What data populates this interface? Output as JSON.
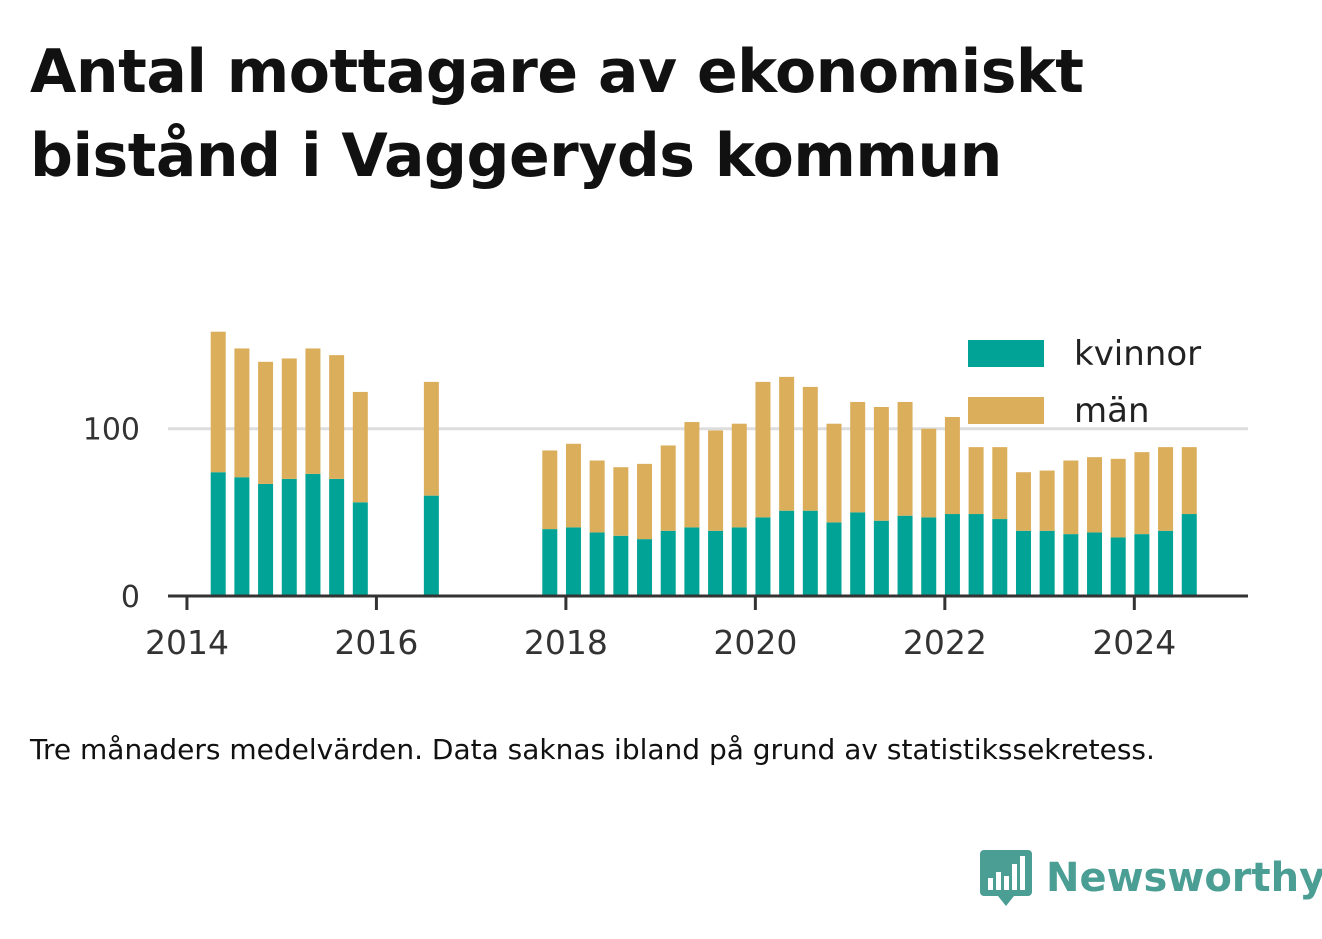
{
  "header": {
    "title_line1": "Antal mottagare av ekonomiskt",
    "title_line2": "bistånd i Vaggeryds kommun"
  },
  "footer": {
    "note": "Tre månaders medelvärden. Data saknas ibland på grund av statistikssekretess.",
    "brand_name": "Newsworthy",
    "brand_icon": "bar-chart-speech-bubble-icon"
  },
  "colors": {
    "kvinnor": "#00a396",
    "man": "#dbae5c",
    "brand": "#4a9e94",
    "grid": "#dddddd",
    "axis": "#333333",
    "tick_text": "#333333"
  },
  "chart_data": {
    "type": "bar",
    "stacked": true,
    "x_unit": "year",
    "xlim": [
      2013.8,
      2025.2
    ],
    "ylim": [
      0,
      165
    ],
    "x_ticks": [
      2014,
      2016,
      2018,
      2020,
      2022,
      2024
    ],
    "y_ticks": [
      0,
      100
    ],
    "grid": "horizontal",
    "legend_position": "top-right",
    "x": [
      2014.33,
      2014.58,
      2014.83,
      2015.08,
      2015.33,
      2015.58,
      2015.83,
      2016.58,
      2017.83,
      2018.08,
      2018.33,
      2018.58,
      2018.83,
      2019.08,
      2019.33,
      2019.58,
      2019.83,
      2020.08,
      2020.33,
      2020.58,
      2020.83,
      2021.08,
      2021.33,
      2021.58,
      2021.83,
      2022.08,
      2022.33,
      2022.58,
      2022.83,
      2023.08,
      2023.33,
      2023.58,
      2023.83,
      2024.08,
      2024.33,
      2024.58
    ],
    "series": [
      {
        "name": "kvinnor",
        "values": [
          74,
          71,
          67,
          70,
          73,
          70,
          56,
          60,
          40,
          41,
          38,
          36,
          34,
          39,
          41,
          39,
          41,
          47,
          51,
          51,
          44,
          50,
          45,
          48,
          47,
          49,
          49,
          46,
          39,
          39,
          37,
          38,
          35,
          37,
          39,
          49
        ]
      },
      {
        "name": "män",
        "values": [
          84,
          77,
          73,
          72,
          75,
          74,
          66,
          68,
          47,
          50,
          43,
          41,
          45,
          51,
          63,
          60,
          62,
          81,
          80,
          74,
          59,
          66,
          68,
          68,
          53,
          58,
          40,
          43,
          35,
          36,
          44,
          45,
          47,
          49,
          50,
          40
        ]
      }
    ]
  }
}
